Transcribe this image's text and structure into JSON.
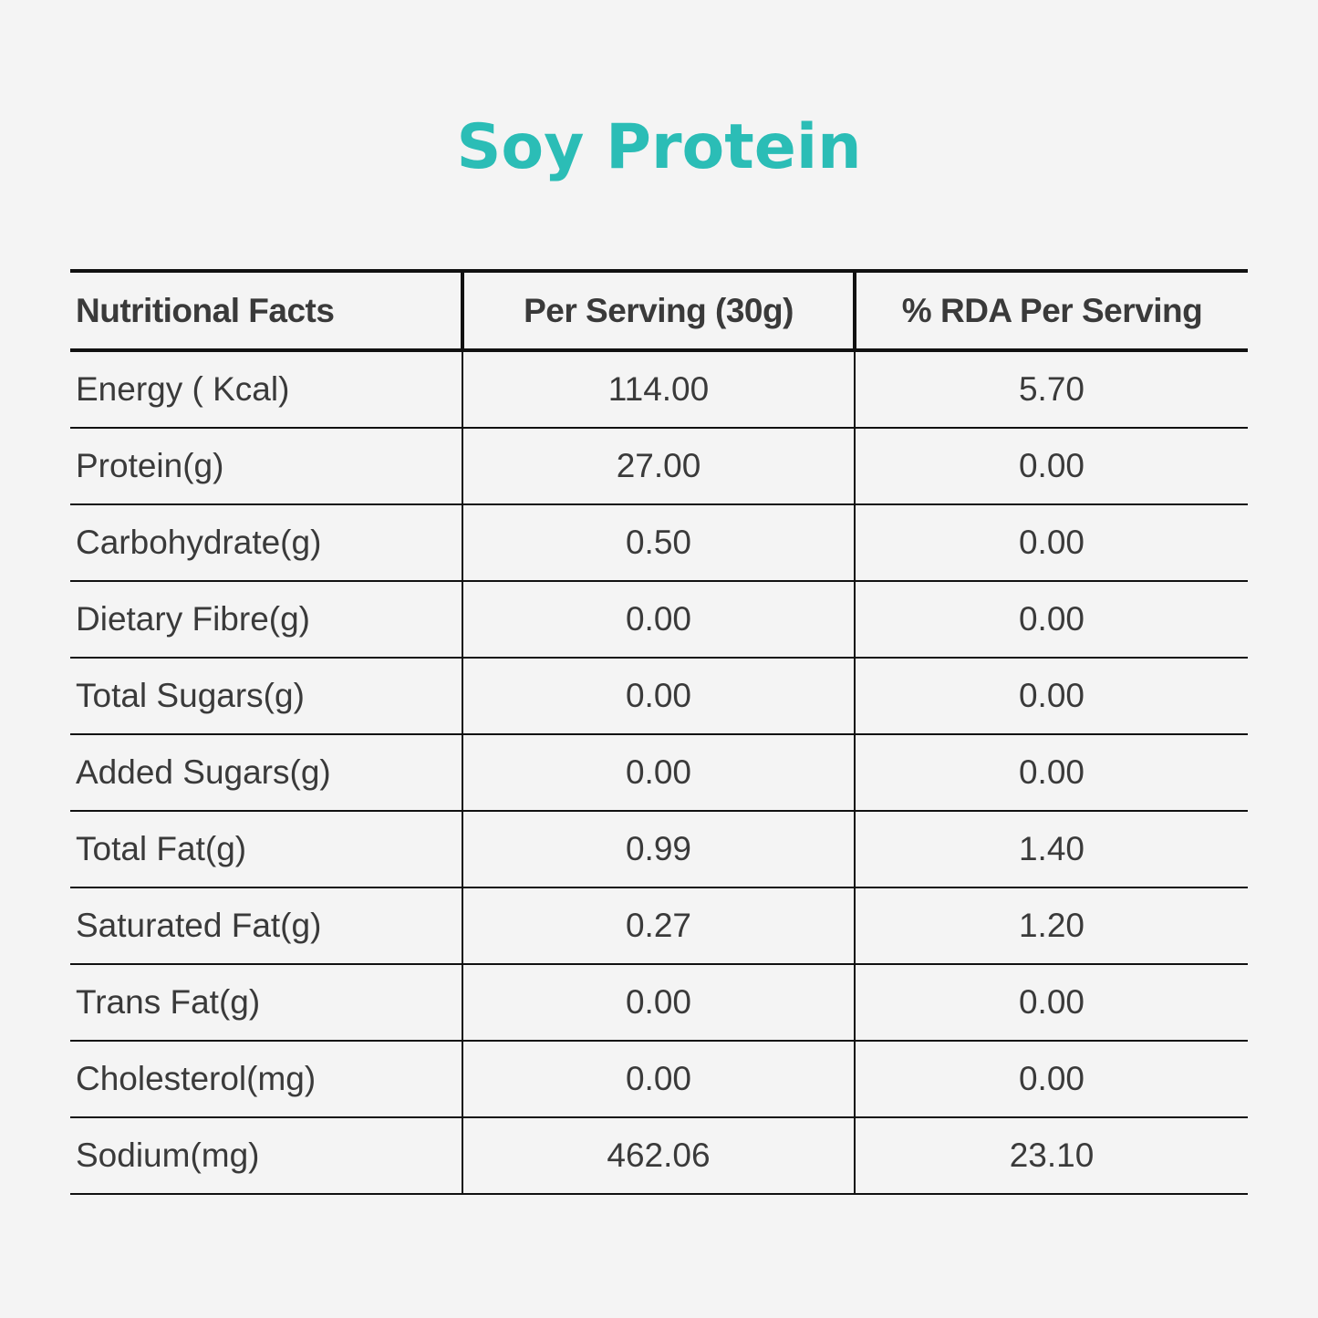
{
  "title": "Soy Protein",
  "colors": {
    "title": "#2bbdb6",
    "text": "#3a3a3a",
    "lines": "#111111",
    "background": "#f4f4f4"
  },
  "table": {
    "headers": [
      "Nutritional Facts",
      "Per Serving (30g)",
      "% RDA Per Serving"
    ],
    "rows": [
      [
        "Energy ( Kcal)",
        "114.00",
        "5.70"
      ],
      [
        "Protein(g)",
        "27.00",
        "0.00"
      ],
      [
        "Carbohydrate(g)",
        "0.50",
        "0.00"
      ],
      [
        "Dietary Fibre(g)",
        "0.00",
        "0.00"
      ],
      [
        "Total Sugars(g)",
        "0.00",
        "0.00"
      ],
      [
        "Added Sugars(g)",
        "0.00",
        "0.00"
      ],
      [
        "Total Fat(g)",
        "0.99",
        "1.40"
      ],
      [
        "Saturated Fat(g)",
        "0.27",
        "1.20"
      ],
      [
        "Trans Fat(g)",
        "0.00",
        "0.00"
      ],
      [
        "Cholesterol(mg)",
        "0.00",
        "0.00"
      ],
      [
        "Sodium(mg)",
        "462.06",
        "23.10"
      ]
    ]
  }
}
